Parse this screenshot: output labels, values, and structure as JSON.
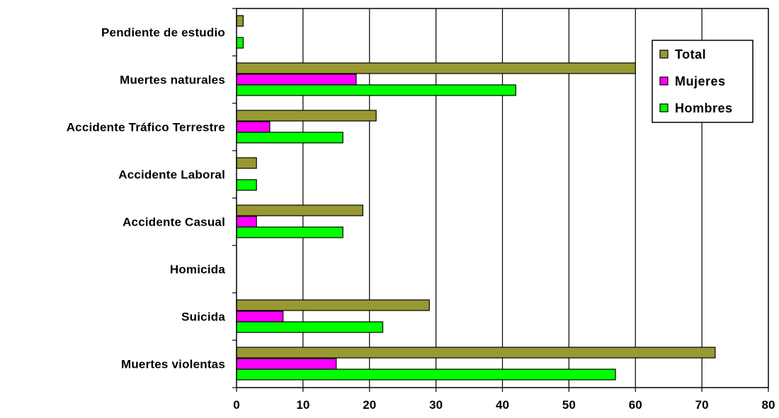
{
  "chart_data": {
    "type": "bar",
    "orientation": "horizontal",
    "title": "",
    "xlabel": "",
    "ylabel": "",
    "categories": [
      "Muertes violentas",
      "Suicida",
      "Homicida",
      "Accidente Casual",
      "Accidente Laboral",
      "Accidente Tráfico Terrestre",
      "Muertes naturales",
      "Pendiente de estudio"
    ],
    "series": [
      {
        "name": "Total",
        "color": "#999933",
        "values": [
          72,
          29,
          0,
          19,
          3,
          21,
          60,
          1
        ]
      },
      {
        "name": "Mujeres",
        "color": "#ff00ff",
        "values": [
          15,
          7,
          0,
          3,
          0,
          5,
          18,
          0
        ]
      },
      {
        "name": "Hombres",
        "color": "#00ff00",
        "values": [
          57,
          22,
          0,
          16,
          3,
          16,
          42,
          1
        ]
      }
    ],
    "xlim": [
      0,
      80
    ],
    "xticks": [
      "0",
      "10",
      "20",
      "30",
      "40",
      "50",
      "60",
      "70",
      "80"
    ],
    "grid": true,
    "legend_position": "top-right"
  }
}
